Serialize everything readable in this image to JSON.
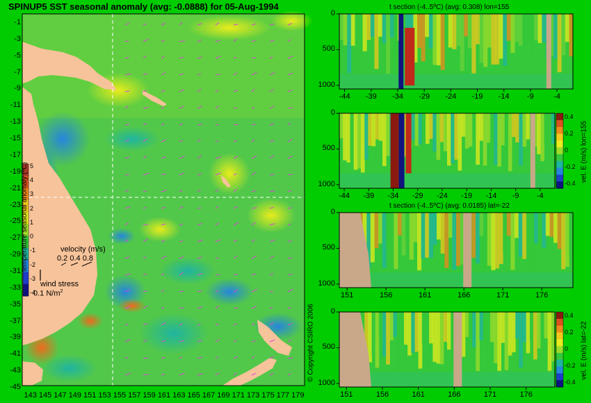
{
  "map": {
    "title": "SPINUP5 SST seasonal anomaly (avg: -0.0888) for 05-Aug-1994",
    "lat_ticks": [
      "-1",
      "-3",
      "-5",
      "-7",
      "-9",
      "-11",
      "-13",
      "-15",
      "-17",
      "-19",
      "-21",
      "-23",
      "-25",
      "-27",
      "-29",
      "-31",
      "-33",
      "-35",
      "-37",
      "-39",
      "-41",
      "-43",
      "-45"
    ],
    "lon_ticks": [
      "143",
      "145",
      "147",
      "149",
      "151",
      "153",
      "155",
      "157",
      "159",
      "161",
      "163",
      "165",
      "167",
      "169",
      "171",
      "173",
      "175",
      "177",
      "179"
    ],
    "colorbar": {
      "label": "temperature seasonal anomaly (ºC)",
      "ticks": [
        "5",
        "4",
        "3",
        "2",
        "1",
        "0",
        "-1",
        "-2",
        "-3",
        "-4"
      ],
      "colors": [
        "#a8372a",
        "#d9521e",
        "#ee8a1c",
        "#f2c81c",
        "#e8ec1c",
        "#9edc2a",
        "#34c83a",
        "#1fb4a0",
        "#2686dc",
        "#1e3ec8",
        "#10147e"
      ]
    },
    "velocity_label": "velocity (m/s)",
    "velocity_scale": "0.2 0.4 0.8",
    "wind_label": "wind stress",
    "wind_scale": "0.1 N/m",
    "wind_unit_sup": "2",
    "copyright": "© Copyright CSIRO 2006",
    "land_color": "#f7c39a",
    "arrow_color": "#dd44dd"
  },
  "chart_data": [
    {
      "type": "heatmap",
      "title": "t section (-4..5ºC) (avg: 0.308) lon=155",
      "x_ticks": [
        "-44",
        "-39",
        "-34",
        "-29",
        "-24",
        "-19",
        "-14",
        "-9",
        "-4"
      ],
      "y_ticks": [
        "0",
        "500",
        "1000"
      ],
      "xlim": [
        -45,
        -1
      ],
      "ylim": [
        1050,
        0
      ]
    },
    {
      "type": "heatmap",
      "title": "",
      "x_ticks": [
        "-44",
        "-39",
        "-34",
        "-29",
        "-24",
        "-19",
        "-14",
        "-9",
        "-4"
      ],
      "y_ticks": [
        "0",
        "500",
        "1000"
      ],
      "colorbar_label": "vel. E (m/s) lon=155",
      "colorbar_ticks": [
        "0.4",
        "0.2",
        "0",
        "-0.2",
        "-0.4"
      ],
      "xlim": [
        -45,
        -1
      ],
      "ylim": [
        1050,
        0
      ]
    },
    {
      "type": "heatmap",
      "title": "t section (-4..5ºC) (avg: 0.0185) lat=-22",
      "x_ticks": [
        "151",
        "156",
        "161",
        "166",
        "171",
        "176"
      ],
      "y_ticks": [
        "0",
        "500",
        "1000"
      ],
      "xlim": [
        150,
        180
      ],
      "ylim": [
        1050,
        0
      ]
    },
    {
      "type": "heatmap",
      "title": "",
      "x_ticks": [
        "151",
        "156",
        "161",
        "166",
        "171",
        "176"
      ],
      "y_ticks": [
        "0",
        "500",
        "1000"
      ],
      "colorbar_label": "vel. E (m/s) lat=-22",
      "colorbar_ticks": [
        "0.4",
        "0.2",
        "0",
        "-0.2",
        "-0.4"
      ],
      "xlim": [
        150,
        180
      ],
      "ylim": [
        1050,
        0
      ]
    }
  ]
}
